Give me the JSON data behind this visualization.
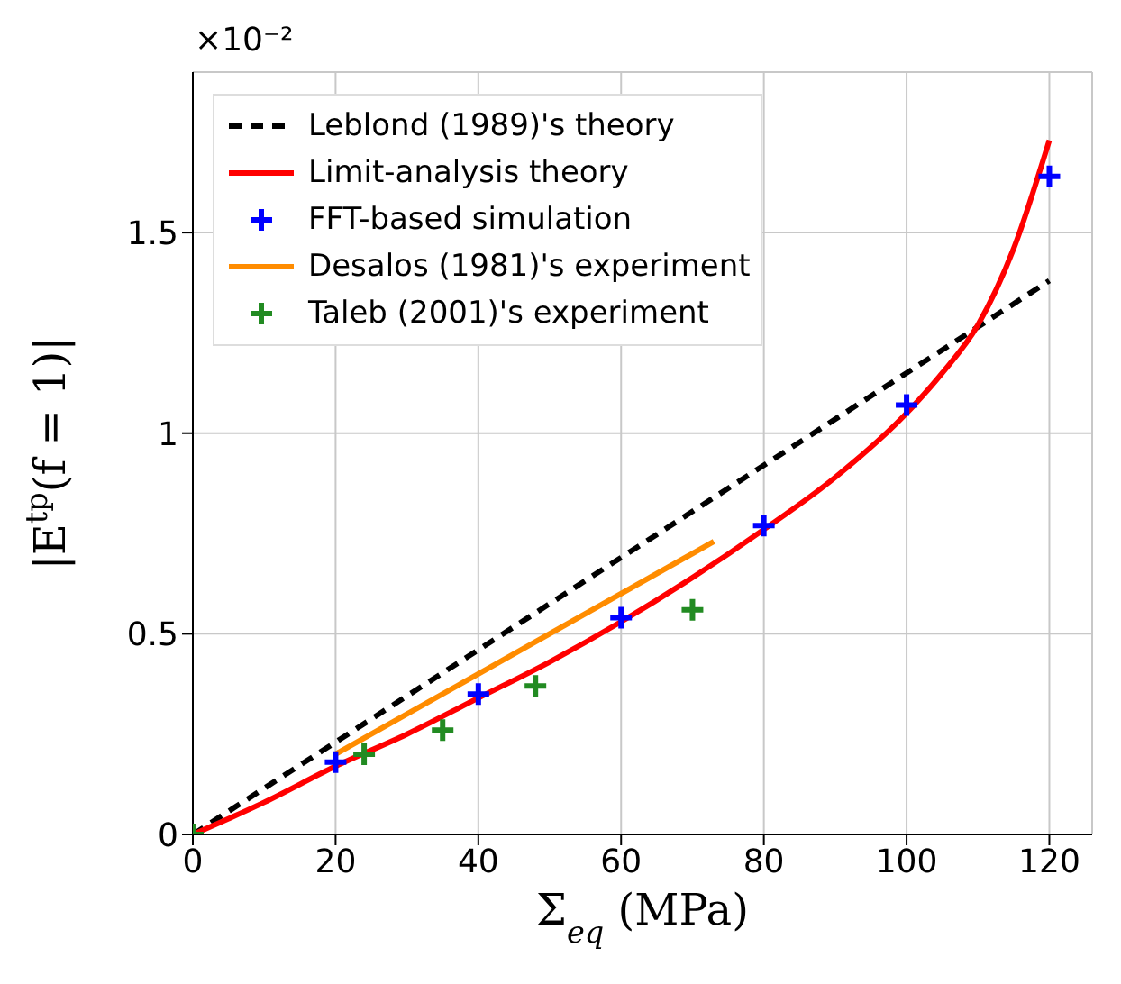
{
  "chart_data": {
    "type": "line",
    "xlabel": "Σ$_{eq}$ (MPa)",
    "ylabel": "|E$^{tp}$(f = 1)|",
    "annotations": [
      "×10⁻²"
    ],
    "xlim": [
      0,
      126
    ],
    "xticks": [
      0,
      20,
      40,
      60,
      80,
      100,
      120
    ],
    "ylim": [
      0,
      1.9
    ],
    "yticks": [
      0,
      0.5,
      1,
      1.5
    ],
    "grid": true,
    "legend": "top left",
    "series": [
      {
        "name": "Leblond (1989)'s theory",
        "color": "#000000",
        "line_style": "dashed",
        "marker": "none",
        "x": [
          0,
          120
        ],
        "values": [
          0,
          1.38
        ]
      },
      {
        "name": "Limit-analysis theory",
        "color": "#ff0000",
        "line_style": "solid",
        "marker": "none",
        "x": [
          0,
          10,
          20,
          30,
          40,
          50,
          60,
          70,
          80,
          90,
          100,
          105,
          110,
          115,
          120
        ],
        "values": [
          0,
          0.08,
          0.17,
          0.25,
          0.34,
          0.43,
          0.53,
          0.64,
          0.76,
          0.89,
          1.05,
          1.15,
          1.27,
          1.46,
          1.73
        ]
      },
      {
        "type": "scatter",
        "name": "FFT-based simulation",
        "color": "#0000ff",
        "marker": "cross",
        "x": [
          20,
          40,
          60,
          80,
          100,
          120
        ],
        "values": [
          0.18,
          0.35,
          0.54,
          0.77,
          1.07,
          1.64
        ]
      },
      {
        "name": "Desalos (1981)'s experiment",
        "color": "#ff8c00",
        "line_style": "solid",
        "marker": "none",
        "x": [
          20,
          73
        ],
        "values": [
          0.2,
          0.73
        ]
      },
      {
        "type": "scatter",
        "name": "Taleb (2001)'s experiment",
        "color": "#228b22",
        "marker": "cross",
        "x": [
          0,
          24,
          35,
          48,
          70
        ],
        "values": [
          0,
          0.2,
          0.26,
          0.37,
          0.56
        ]
      }
    ]
  }
}
